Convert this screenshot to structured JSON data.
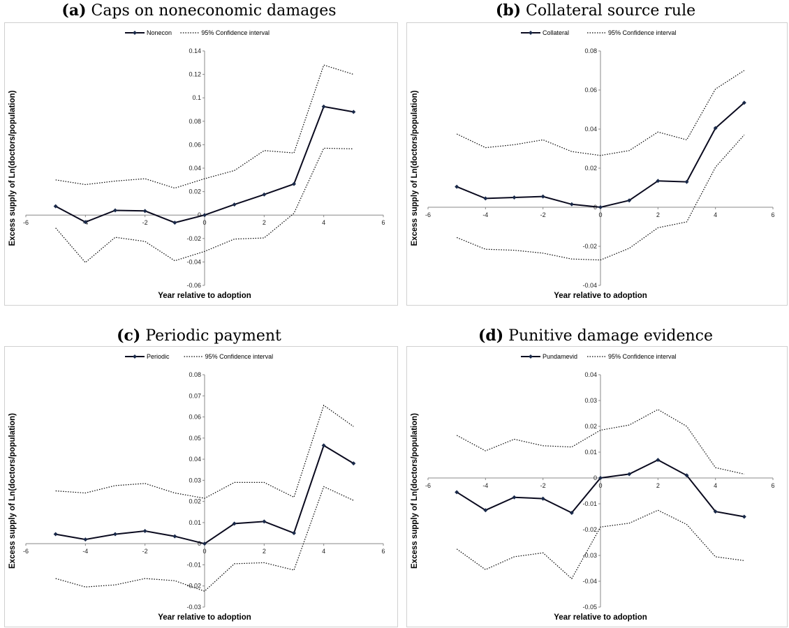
{
  "chart_data": [
    {
      "type": "line",
      "panel_label": "(a)",
      "title": "Caps on noneconomic damages",
      "xlabel": "Year relative to adoption",
      "ylabel": "Excess supply of Ln(doctors/population)",
      "xlim": [
        -6,
        6
      ],
      "ylim": [
        -0.06,
        0.14
      ],
      "xticks": [
        -6,
        -4,
        -2,
        0,
        2,
        4,
        6
      ],
      "xtick_labels": [
        "-6",
        "-4",
        "-2",
        "0",
        "2",
        "4",
        "6"
      ],
      "yticks": [
        -0.06,
        -0.04,
        -0.02,
        0,
        0.02,
        0.04,
        0.06,
        0.08,
        0.1,
        0.12,
        0.14
      ],
      "ytick_labels": [
        "-0.06",
        "-0.04",
        "-0.02",
        "0",
        "0.02",
        "0.04",
        "0.06",
        "0.08",
        "0.1",
        "0.12",
        "0.14"
      ],
      "x": [
        -5,
        -4,
        -3,
        -2,
        -1,
        0,
        1,
        2,
        3,
        4,
        5
      ],
      "series": [
        {
          "name": "Nonecon",
          "values": [
            0.0075,
            -0.006,
            0.004,
            0.0035,
            -0.0065,
            0.0,
            0.009,
            0.0175,
            0.0265,
            0.0925,
            0.088
          ]
        },
        {
          "name": "95% Confidence interval",
          "values": [
            0.03,
            0.026,
            0.029,
            0.031,
            0.023,
            0.031,
            0.038,
            0.055,
            0.053,
            0.128,
            0.12
          ]
        },
        {
          "name": "",
          "values": [
            -0.011,
            -0.0405,
            -0.019,
            -0.0225,
            -0.039,
            -0.031,
            -0.0205,
            -0.0195,
            0.0015,
            0.057,
            0.0565
          ]
        }
      ],
      "legend_placement": "top-center",
      "grid": false
    },
    {
      "type": "line",
      "panel_label": "(b)",
      "title": "Collateral source rule",
      "xlabel": "Year relative to adoption",
      "ylabel": "Excess supply of Ln(doctors/population)",
      "xlim": [
        -6,
        6
      ],
      "ylim": [
        -0.04,
        0.08
      ],
      "xticks": [
        -6,
        -4,
        -2,
        0,
        2,
        4,
        6
      ],
      "xtick_labels": [
        "-6",
        "-4",
        "-2",
        "0",
        "2",
        "4",
        "6"
      ],
      "yticks": [
        -0.04,
        -0.02,
        0,
        0.02,
        0.04,
        0.06,
        0.08
      ],
      "ytick_labels": [
        "-0.04",
        "-0.02",
        "0",
        "0.02",
        "0.04",
        "0.06",
        "0.08"
      ],
      "x": [
        -5,
        -4,
        -3,
        -2,
        -1,
        0,
        1,
        2,
        3,
        4,
        5
      ],
      "series": [
        {
          "name": "Collateral",
          "values": [
            0.0105,
            0.0045,
            0.005,
            0.0055,
            0.0015,
            0.0,
            0.0035,
            0.0135,
            0.013,
            0.0405,
            0.0535
          ]
        },
        {
          "name": "95% Confidence interval",
          "values": [
            0.0375,
            0.0305,
            0.032,
            0.0345,
            0.0285,
            0.0265,
            0.029,
            0.0385,
            0.0345,
            0.0605,
            0.07
          ]
        },
        {
          "name": "",
          "values": [
            -0.0155,
            -0.0215,
            -0.022,
            -0.0235,
            -0.0265,
            -0.027,
            -0.021,
            -0.0105,
            -0.0075,
            0.0205,
            0.037
          ]
        }
      ],
      "legend_placement": "top-center",
      "grid": false
    },
    {
      "type": "line",
      "panel_label": "(c)",
      "title": "Periodic payment",
      "xlabel": "Year relative to adoption",
      "ylabel": "Excess supply of Ln(doctors/population)",
      "xlim": [
        -6,
        6
      ],
      "ylim": [
        -0.03,
        0.08
      ],
      "xticks": [
        -6,
        -4,
        -2,
        0,
        2,
        4,
        6
      ],
      "xtick_labels": [
        "-6",
        "-4",
        "-2",
        "0",
        "2",
        "4",
        "6"
      ],
      "yticks": [
        -0.03,
        -0.02,
        -0.01,
        0,
        0.01,
        0.02,
        0.03,
        0.04,
        0.05,
        0.06,
        0.07,
        0.08
      ],
      "ytick_labels": [
        "-0.03",
        "-0.02",
        "-0.01",
        "0",
        "0.01",
        "0.02",
        "0.03",
        "0.04",
        "0.05",
        "0.06",
        "0.07",
        "0.08"
      ],
      "x": [
        -5,
        -4,
        -3,
        -2,
        -1,
        0,
        1,
        2,
        3,
        4,
        5
      ],
      "series": [
        {
          "name": "Periodic",
          "values": [
            0.0045,
            0.002,
            0.0045,
            0.006,
            0.0035,
            0.0,
            0.0095,
            0.0105,
            0.005,
            0.0465,
            0.038
          ]
        },
        {
          "name": "95% Confidence interval",
          "values": [
            0.025,
            0.024,
            0.0275,
            0.0285,
            0.024,
            0.0215,
            0.029,
            0.029,
            0.022,
            0.0655,
            0.0555
          ]
        },
        {
          "name": "",
          "values": [
            -0.0165,
            -0.0205,
            -0.0195,
            -0.0165,
            -0.0175,
            -0.0225,
            -0.0095,
            -0.009,
            -0.0125,
            0.027,
            0.0205
          ]
        }
      ],
      "legend_placement": "top-center",
      "grid": false
    },
    {
      "type": "line",
      "panel_label": "(d)",
      "title": "Punitive damage evidence",
      "xlabel": "Year relative to adoption",
      "ylabel": "Excess supply of Ln(doctors/population)",
      "xlim": [
        -6,
        6
      ],
      "ylim": [
        -0.05,
        0.04
      ],
      "xticks": [
        -6,
        -4,
        -2,
        0,
        2,
        4,
        6
      ],
      "xtick_labels": [
        "-6",
        "-4",
        "-2",
        "0",
        "2",
        "4",
        "6"
      ],
      "yticks": [
        -0.05,
        -0.04,
        -0.03,
        -0.02,
        -0.01,
        0,
        0.01,
        0.02,
        0.03,
        0.04
      ],
      "ytick_labels": [
        "-0.05",
        "-0.04",
        "-0.03",
        "-0.02",
        "-0.01",
        "0",
        "0.01",
        "0.02",
        "0.03",
        "0.04"
      ],
      "x": [
        -5,
        -4,
        -3,
        -2,
        -1,
        0,
        1,
        2,
        3,
        4,
        5
      ],
      "series": [
        {
          "name": "Pundamevid",
          "values": [
            -0.0055,
            -0.0125,
            -0.0075,
            -0.008,
            -0.0135,
            0.0,
            0.0015,
            0.007,
            0.001,
            -0.013,
            -0.015
          ]
        },
        {
          "name": "95% Confidence interval",
          "values": [
            0.0165,
            0.0105,
            0.015,
            0.0125,
            0.012,
            0.0185,
            0.0205,
            0.0265,
            0.02,
            0.004,
            0.0015
          ]
        },
        {
          "name": "",
          "values": [
            -0.0275,
            -0.0355,
            -0.0305,
            -0.029,
            -0.039,
            -0.019,
            -0.0175,
            -0.0125,
            -0.018,
            -0.0305,
            -0.032
          ]
        }
      ],
      "legend_placement": "top-center",
      "grid": false
    }
  ],
  "colors": {
    "estimate_line": "#0a0a1e",
    "marker": "#1a2a4a",
    "ci_line": "#000000",
    "axis": "#888888",
    "border": "#d0d0d0"
  }
}
